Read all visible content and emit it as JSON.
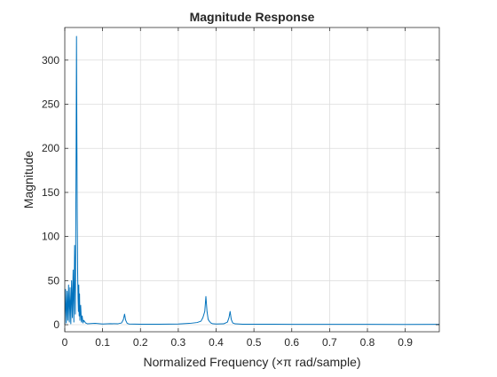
{
  "chart_data": {
    "type": "line",
    "title": "Magnitude Response",
    "xlabel": "Normalized Frequency (×π rad/sample)",
    "ylabel": "Magnitude",
    "xlim": [
      0,
      0.99
    ],
    "ylim": [
      -8,
      337
    ],
    "xticks": [
      0,
      0.1,
      0.2,
      0.3,
      0.4,
      0.5,
      0.6,
      0.7,
      0.8,
      0.9
    ],
    "xtick_labels": [
      "0",
      "0.1",
      "0.2",
      "0.3",
      "0.4",
      "0.5",
      "0.6",
      "0.7",
      "0.8",
      "0.9"
    ],
    "yticks": [
      0,
      50,
      100,
      150,
      200,
      250,
      300
    ],
    "ytick_labels": [
      "0",
      "50",
      "100",
      "150",
      "200",
      "250",
      "300"
    ],
    "grid": true,
    "series": [
      {
        "color": "#0072bd",
        "x": [
          0.0,
          0.002,
          0.004,
          0.006,
          0.008,
          0.01,
          0.012,
          0.014,
          0.016,
          0.018,
          0.02,
          0.022,
          0.024,
          0.026,
          0.028,
          0.03,
          0.031,
          0.032,
          0.033,
          0.034,
          0.035,
          0.036,
          0.037,
          0.038,
          0.039,
          0.04,
          0.042,
          0.044,
          0.046,
          0.048,
          0.05,
          0.055,
          0.06,
          0.08,
          0.1,
          0.12,
          0.14,
          0.15,
          0.155,
          0.158,
          0.161,
          0.165,
          0.17,
          0.2,
          0.25,
          0.3,
          0.33,
          0.35,
          0.36,
          0.365,
          0.37,
          0.373,
          0.376,
          0.379,
          0.382,
          0.386,
          0.39,
          0.4,
          0.42,
          0.43,
          0.434,
          0.437,
          0.44,
          0.444,
          0.45,
          0.47,
          0.5,
          0.55,
          0.6,
          0.7,
          0.8,
          0.9,
          0.99
        ],
        "y": [
          0,
          40,
          2,
          38,
          5,
          45,
          3,
          42,
          1,
          50,
          8,
          62,
          3,
          90,
          12,
          200,
          327,
          210,
          120,
          60,
          30,
          15,
          45,
          10,
          35,
          5,
          22,
          3,
          10,
          2,
          5,
          2,
          1,
          1.5,
          0.8,
          1.2,
          1,
          2,
          6,
          12,
          5,
          1.5,
          0.8,
          0.5,
          0.6,
          0.8,
          1.5,
          2.5,
          4,
          8,
          15,
          32,
          15,
          6,
          4,
          2,
          1.2,
          0.8,
          1,
          3,
          8,
          15,
          6,
          2,
          1,
          0.6,
          0.5,
          0.5,
          0.4,
          0.4,
          0.4,
          0.3,
          0.4
        ]
      }
    ]
  }
}
